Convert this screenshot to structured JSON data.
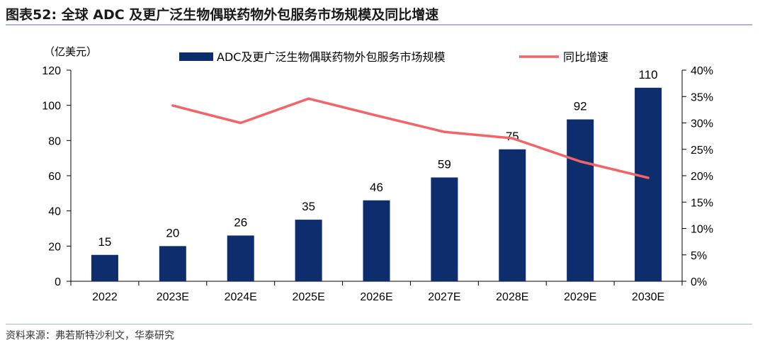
{
  "header": {
    "title": "图表52:  全球 ADC 及更广泛生物偶联药物外包服务市场规模及同比增速"
  },
  "footer": {
    "source": "资料来源：弗若斯特沙利文，华泰研究"
  },
  "chart_data": {
    "type": "bar",
    "categories": [
      "2022",
      "2023E",
      "2024E",
      "2025E",
      "2026E",
      "2027E",
      "2028E",
      "2029E",
      "2030E"
    ],
    "unit_label": "（亿美元）",
    "series": [
      {
        "name": "ADC及更广泛生物偶联药物外包服务市场规模",
        "type": "bar",
        "axis": "left",
        "color": "#0d2d6c",
        "values": [
          15,
          20,
          26,
          35,
          46,
          59,
          75,
          92,
          110
        ],
        "labels": [
          "15",
          "20",
          "26",
          "35",
          "46",
          "59",
          "75",
          "92",
          "110"
        ]
      },
      {
        "name": "同比增速",
        "type": "line",
        "axis": "right",
        "color": "#f36466",
        "values": [
          null,
          33.3,
          30.0,
          34.6,
          31.4,
          28.3,
          27.1,
          22.7,
          19.6
        ]
      }
    ],
    "left_axis": {
      "ylim": [
        0,
        120
      ],
      "ticks": [
        "0",
        "20",
        "40",
        "60",
        "80",
        "100",
        "120"
      ]
    },
    "right_axis": {
      "ylim": [
        0,
        40
      ],
      "ticks": [
        "0%",
        "5%",
        "10%",
        "15%",
        "20%",
        "25%",
        "30%",
        "35%",
        "40%"
      ]
    },
    "legend_position": "top",
    "grid": false
  }
}
